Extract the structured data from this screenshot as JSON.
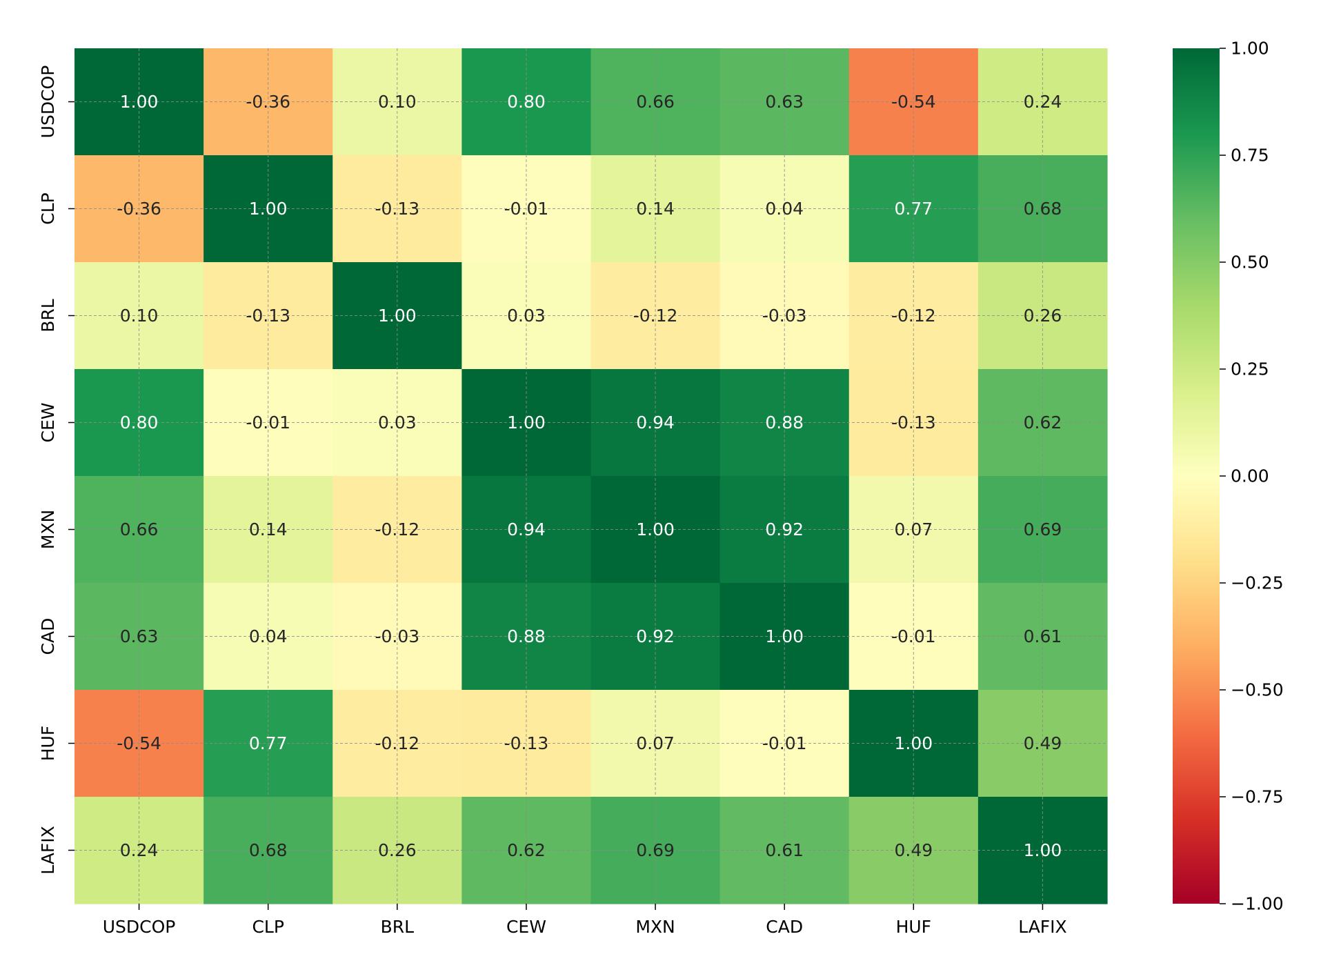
{
  "chart_data": {
    "type": "heatmap",
    "title": "",
    "xlabel": "",
    "ylabel": "",
    "rows": [
      "USDCOP",
      "CLP",
      "BRL",
      "CEW",
      "MXN",
      "CAD",
      "HUF",
      "LAFIX"
    ],
    "columns": [
      "USDCOP",
      "CLP",
      "BRL",
      "CEW",
      "MXN",
      "CAD",
      "HUF",
      "LAFIX"
    ],
    "values": [
      [
        1.0,
        -0.36,
        0.1,
        0.8,
        0.66,
        0.63,
        -0.54,
        0.24
      ],
      [
        -0.36,
        1.0,
        -0.13,
        -0.01,
        0.14,
        0.04,
        0.77,
        0.68
      ],
      [
        0.1,
        -0.13,
        1.0,
        0.03,
        -0.12,
        -0.03,
        -0.12,
        0.26
      ],
      [
        0.8,
        -0.01,
        0.03,
        1.0,
        0.94,
        0.88,
        -0.13,
        0.62
      ],
      [
        0.66,
        0.14,
        -0.12,
        0.94,
        1.0,
        0.92,
        0.07,
        0.69
      ],
      [
        0.63,
        0.04,
        -0.03,
        0.88,
        0.92,
        1.0,
        -0.01,
        0.61
      ],
      [
        -0.54,
        0.77,
        -0.12,
        -0.13,
        0.07,
        -0.01,
        1.0,
        0.49
      ],
      [
        0.24,
        0.68,
        0.26,
        0.62,
        0.69,
        0.61,
        0.49,
        1.0
      ]
    ],
    "cell_label_format": "2 decimals",
    "colorscale": "RdYlGn",
    "vmin": -1.0,
    "vmax": 1.0,
    "colorbar_ticks": [
      1.0,
      0.75,
      0.5,
      0.25,
      0.0,
      -0.25,
      -0.5,
      -0.75,
      -1.0
    ],
    "colorbar_tick_labels": [
      "1.00",
      "0.75",
      "0.50",
      "0.25",
      "0.00",
      "−0.25",
      "−0.50",
      "−0.75",
      "−1.00"
    ],
    "grid": true,
    "grid_style": "dashed",
    "colorbar_position": "right"
  }
}
